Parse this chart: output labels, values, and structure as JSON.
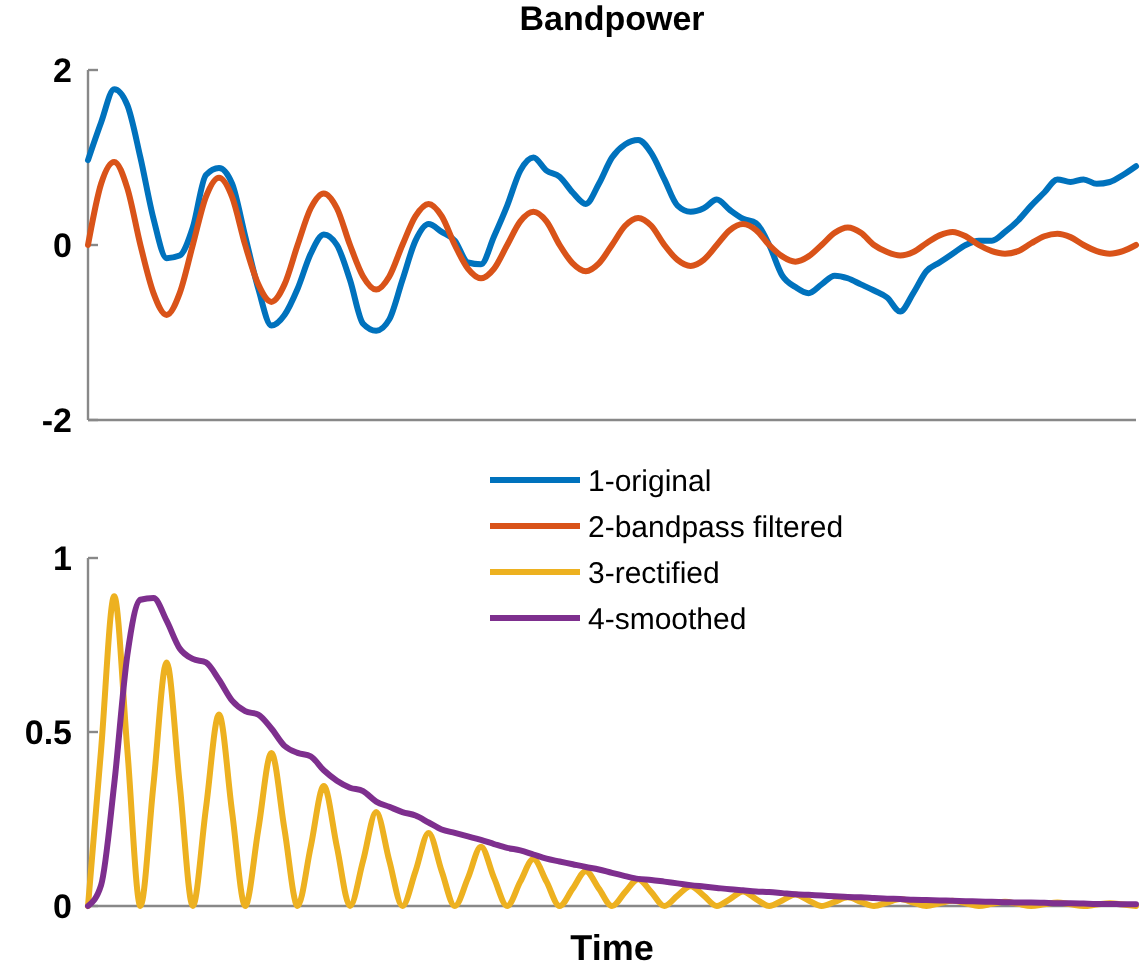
{
  "chart_data": [
    {
      "type": "line",
      "title": "Bandpower",
      "categories": [
        null,
        null,
        null,
        null,
        null,
        null,
        null,
        null,
        null,
        null,
        null,
        null,
        null,
        null,
        null,
        null,
        null,
        null,
        null,
        null,
        null,
        null,
        null,
        null,
        null,
        null,
        null,
        null,
        null,
        null,
        null,
        null,
        null,
        null,
        null,
        null,
        null,
        null,
        null,
        null,
        null,
        null,
        null,
        null,
        null,
        null,
        null,
        null,
        null,
        null,
        null,
        null,
        null,
        null,
        null,
        null,
        null,
        null,
        null,
        null,
        null,
        null,
        null,
        null,
        null,
        null,
        null,
        null,
        null,
        null,
        null,
        null,
        null,
        null,
        null,
        null,
        null,
        null,
        null,
        null,
        null
      ],
      "ylim": [
        -2,
        2
      ],
      "yticks": [
        -2,
        0,
        2
      ],
      "tick_labels": "y",
      "legend": "bottom",
      "marker": "none",
      "line_style": "solid",
      "series": [
        {
          "name": "1-original",
          "color": "#0072bd",
          "values": [
            0.97,
            1.4,
            1.78,
            1.6,
            1.0,
            0.3,
            -0.15,
            -0.12,
            0.2,
            0.8,
            0.88,
            0.7,
            0.1,
            -0.5,
            -0.92,
            -0.8,
            -0.5,
            -0.1,
            0.12,
            0.0,
            -0.4,
            -0.9,
            -0.98,
            -0.85,
            -0.4,
            0.05,
            0.24,
            0.15,
            0.05,
            -0.2,
            -0.22,
            0.1,
            0.45,
            0.85,
            1.0,
            0.85,
            0.78,
            0.6,
            0.47,
            0.7,
            1.0,
            1.15,
            1.2,
            1.05,
            0.75,
            0.45,
            0.38,
            0.42,
            0.52,
            0.4,
            0.3,
            0.25,
            0.0,
            -0.35,
            -0.48,
            -0.55,
            -0.45,
            -0.35,
            -0.38,
            -0.45,
            -0.52,
            -0.6,
            -0.76,
            -0.55,
            -0.3,
            -0.2,
            -0.1,
            0.0,
            0.05,
            0.05,
            0.15,
            0.28,
            0.45,
            0.6,
            0.75,
            0.72,
            0.75,
            0.7,
            0.72,
            0.8,
            0.9
          ]
        },
        {
          "name": "2-bandpass filtered",
          "color": "#d95319",
          "values": [
            0,
            0.7,
            0.95,
            0.65,
            0,
            -0.55,
            -0.8,
            -0.55,
            0,
            0.55,
            0.77,
            0.55,
            0,
            -0.45,
            -0.65,
            -0.45,
            0,
            0.42,
            0.59,
            0.42,
            0,
            -0.36,
            -0.51,
            -0.36,
            0,
            0.33,
            0.47,
            0.33,
            0,
            -0.27,
            -0.38,
            -0.27,
            0,
            0.27,
            0.38,
            0.27,
            0,
            -0.21,
            -0.3,
            -0.21,
            0,
            0.22,
            0.31,
            0.22,
            0,
            -0.17,
            -0.24,
            -0.17,
            0,
            0.17,
            0.24,
            0.17,
            0,
            -0.13,
            -0.19,
            -0.13,
            0,
            0.14,
            0.2,
            0.14,
            0,
            -0.08,
            -0.12,
            -0.08,
            0.02,
            0.11,
            0.15,
            0.1,
            0,
            -0.07,
            -0.1,
            -0.07,
            0.02,
            0.1,
            0.13,
            0.09,
            0,
            -0.07,
            -0.1,
            -0.07,
            0
          ]
        }
      ]
    },
    {
      "type": "line",
      "xlabel": "Time",
      "categories": [
        null,
        null,
        null,
        null,
        null,
        null,
        null,
        null,
        null,
        null,
        null,
        null,
        null,
        null,
        null,
        null,
        null,
        null,
        null,
        null,
        null,
        null,
        null,
        null,
        null,
        null,
        null,
        null,
        null,
        null,
        null,
        null,
        null,
        null,
        null,
        null,
        null,
        null,
        null,
        null,
        null,
        null,
        null,
        null,
        null,
        null,
        null,
        null,
        null,
        null,
        null,
        null,
        null,
        null,
        null,
        null,
        null,
        null,
        null,
        null,
        null,
        null,
        null,
        null,
        null,
        null,
        null,
        null,
        null,
        null,
        null,
        null,
        null,
        null,
        null,
        null,
        null,
        null,
        null,
        null,
        null
      ],
      "ylim": [
        0,
        1
      ],
      "yticks": [
        0,
        0.5,
        1
      ],
      "tick_labels": "y",
      "legend": "top",
      "marker": "none",
      "line_style": "solid",
      "series": [
        {
          "name": "3-rectified",
          "color": "#edb120",
          "values": [
            0,
            0.45,
            0.89,
            0.45,
            0,
            0.35,
            0.7,
            0.35,
            0,
            0.28,
            0.55,
            0.27,
            0,
            0.22,
            0.44,
            0.22,
            0,
            0.17,
            0.345,
            0.17,
            0,
            0.13,
            0.27,
            0.13,
            0,
            0.1,
            0.21,
            0.1,
            0,
            0.08,
            0.17,
            0.08,
            0,
            0.07,
            0.135,
            0.07,
            0,
            0.05,
            0.1,
            0.05,
            0,
            0.04,
            0.077,
            0.04,
            0,
            0.03,
            0.057,
            0.03,
            0,
            0.02,
            0.042,
            0.02,
            0,
            0.016,
            0.033,
            0.016,
            0,
            0.012,
            0.025,
            0.012,
            0,
            0.01,
            0.02,
            0.01,
            0,
            0.008,
            0.015,
            0.008,
            0,
            0.006,
            0.012,
            0.006,
            0,
            0.005,
            0.01,
            0.005,
            0,
            0.004,
            0.008,
            0.004,
            0
          ]
        },
        {
          "name": "4-smoothed",
          "color": "#7e2f8e",
          "values": [
            0,
            0.06,
            0.35,
            0.72,
            0.88,
            0.885,
            0.82,
            0.74,
            0.71,
            0.7,
            0.65,
            0.59,
            0.56,
            0.55,
            0.51,
            0.46,
            0.44,
            0.43,
            0.39,
            0.36,
            0.34,
            0.33,
            0.3,
            0.285,
            0.27,
            0.26,
            0.24,
            0.22,
            0.21,
            0.2,
            0.19,
            0.178,
            0.167,
            0.16,
            0.148,
            0.136,
            0.128,
            0.12,
            0.112,
            0.105,
            0.095,
            0.086,
            0.078,
            0.075,
            0.07,
            0.065,
            0.06,
            0.056,
            0.052,
            0.048,
            0.045,
            0.042,
            0.04,
            0.037,
            0.034,
            0.032,
            0.03,
            0.028,
            0.026,
            0.025,
            0.023,
            0.021,
            0.02,
            0.018,
            0.017,
            0.016,
            0.015,
            0.014,
            0.013,
            0.012,
            0.011,
            0.01,
            0.01,
            0.009,
            0.008,
            0.008,
            0.007,
            0.006,
            0.006,
            0.005,
            0.005
          ]
        }
      ]
    }
  ]
}
